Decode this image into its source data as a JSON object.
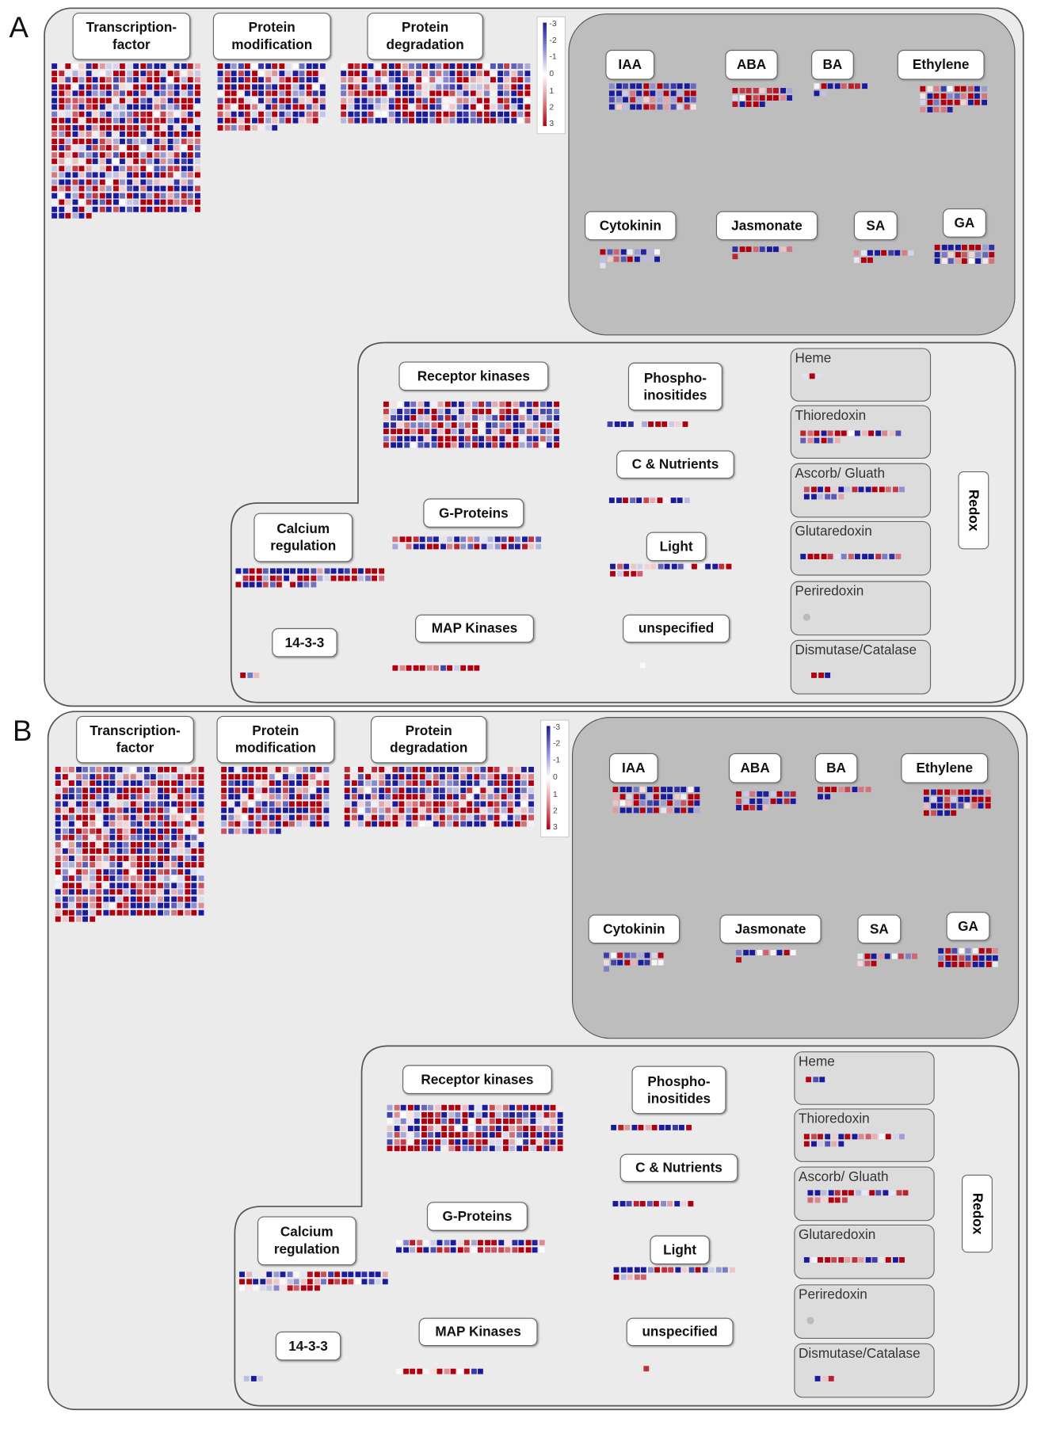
{
  "panels": [
    {
      "letter": "A"
    },
    {
      "letter": "B"
    }
  ],
  "labels": {
    "transcription_factor": "Transcription-\nfactor",
    "protein_modification": "Protein\nmodification",
    "protein_degradation": "Protein\ndegradation",
    "iaa": "IAA",
    "aba": "ABA",
    "ba": "BA",
    "ethylene": "Ethylene",
    "cytokinin": "Cytokinin",
    "jasmonate": "Jasmonate",
    "sa": "SA",
    "ga": "GA",
    "receptor_kinases": "Receptor kinases",
    "phosphoinositides": "Phospho-\ninositides",
    "c_nutrients": "C & Nutrients",
    "g_proteins": "G-Proteins",
    "calcium_regulation": "Calcium\nregulation",
    "light": "Light",
    "p14_3_3": "14-3-3",
    "map_kinases": "MAP Kinases",
    "unspecified": "unspecified",
    "heme": "Heme",
    "thioredoxin": "Thioredoxin",
    "ascorb_gluath": "Ascorb/ Gluath",
    "glutaredoxin": "Glutaredoxin",
    "periredoxin": "Periredoxin",
    "dismutase_catalase": "Dismutase/Catalase",
    "redox": "Redox"
  },
  "legend": {
    "ticks": [
      "-3",
      "-2",
      "-1",
      "0",
      "1",
      "2",
      "3"
    ],
    "colors": {
      "negative": "#1a1a9c",
      "zero": "#ffffff",
      "positive": "#b00010"
    }
  }
}
